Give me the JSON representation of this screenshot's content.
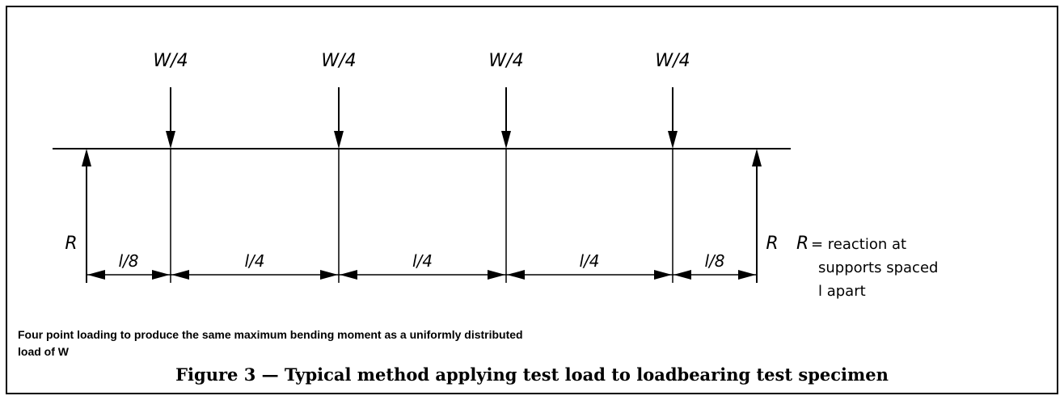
{
  "loads": [
    "W/4",
    "W/4",
    "W/4",
    "W/4"
  ],
  "reactions": [
    "R",
    "R"
  ],
  "dimensions": [
    "l/8",
    "l/4",
    "l/4",
    "l/4",
    "l/8"
  ],
  "legend": {
    "symbol": "R",
    "lines": [
      "= reaction at",
      "supports spaced",
      "l apart"
    ]
  },
  "caption": [
    "Four point loading to produce the same maximum bending moment as a uniformly distributed",
    "load of W"
  ],
  "figure_title": "Figure 3 — Typical method applying test load to loadbearing test specimen"
}
